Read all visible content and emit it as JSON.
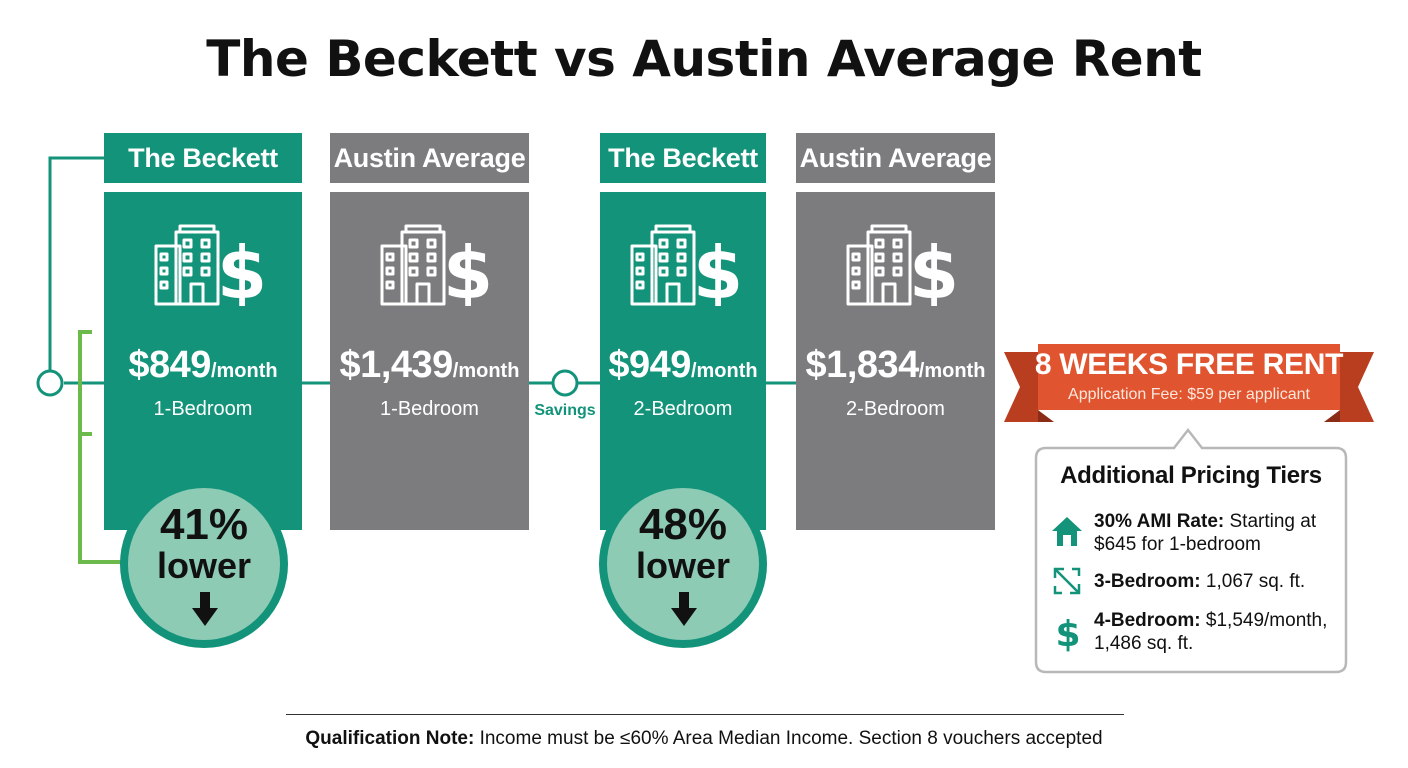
{
  "title": "The Beckett vs Austin Average Rent",
  "colors": {
    "beckett": "#12937a",
    "austin": "#7c7c7e",
    "accent": "#e0552f",
    "badge": "#8dcbb5"
  },
  "icons": {
    "card": "building-dollar-icon",
    "badge": "arrow-down-icon",
    "tiers": [
      "house-icon",
      "expand-arrows-icon",
      "dollar-icon"
    ]
  },
  "cards": [
    {
      "header": "The Beckett",
      "price": "$849",
      "unit": "/month",
      "beds": "1-Bedroom"
    },
    {
      "header": "Austin Average",
      "price": "$1,439",
      "unit": "/month",
      "beds": "1-Bedroom"
    },
    {
      "header": "The Beckett",
      "price": "$949",
      "unit": "/month",
      "beds": "2-Bedroom"
    },
    {
      "header": "Austin Average",
      "price": "$1,834",
      "unit": "/month",
      "beds": "2-Bedroom"
    }
  ],
  "badges": [
    {
      "pct": "41%",
      "label": "lower"
    },
    {
      "pct": "48%",
      "label": "lower"
    }
  ],
  "savings_label": "Savings",
  "promo": {
    "title": "8 WEEKS FREE RENT",
    "subtitle": "Application Fee: $59 per applicant"
  },
  "tiers": {
    "title": "Additional Pricing Tiers",
    "items": [
      {
        "label": "30% AMI Rate:",
        "text": " Starting at $645 for 1-bedroom"
      },
      {
        "label": "3-Bedroom:",
        "text": " 1,067 sq. ft."
      },
      {
        "label": "4-Bedroom:",
        "text": " $1,549/month, 1,486 sq. ft."
      }
    ]
  },
  "footer": {
    "label": "Qualification Note:",
    "text": " Income must be ≤60% Area Median Income. Section 8 vouchers accepted"
  },
  "chart_data": {
    "type": "bar",
    "categories": [
      "1-Bedroom",
      "2-Bedroom"
    ],
    "series": [
      {
        "name": "The Beckett",
        "values": [
          849,
          949
        ]
      },
      {
        "name": "Austin Average",
        "values": [
          1439,
          1834
        ]
      }
    ],
    "annotations": [
      "41% lower",
      "48% lower"
    ],
    "title": "The Beckett vs Austin Average Rent",
    "xlabel": "",
    "ylabel": ""
  }
}
